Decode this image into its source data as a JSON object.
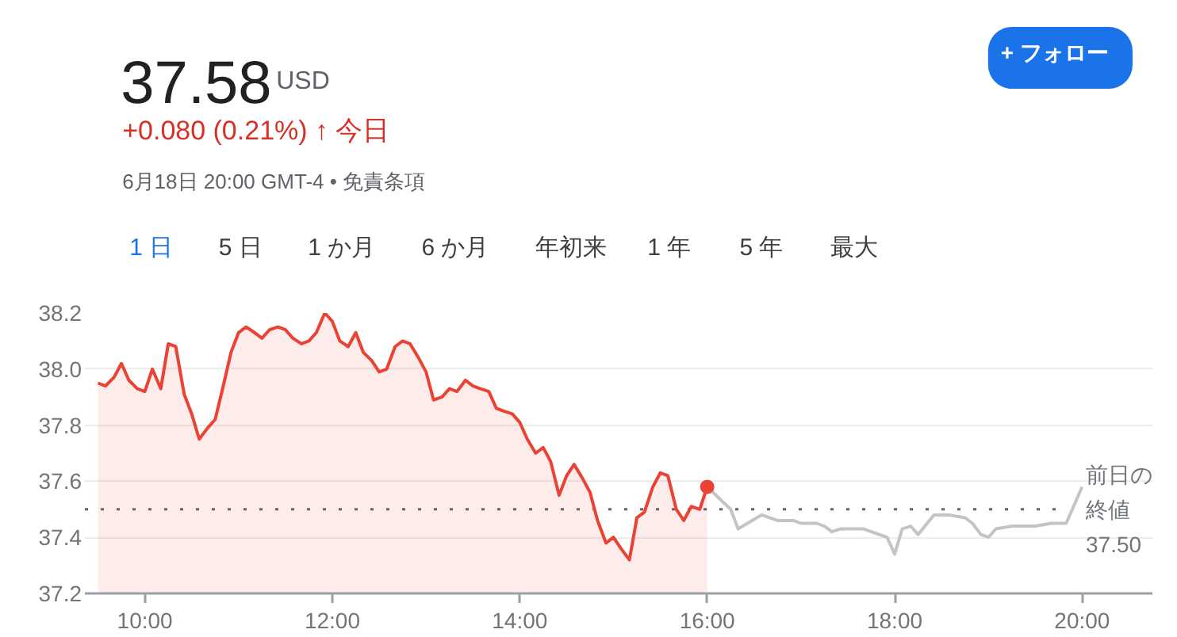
{
  "chart_data": {
    "type": "line",
    "title": "37.58",
    "annotations": [
      "USD",
      "+0.080 (0.21%) ↑ 今日",
      "6月18日 20:00 GMT-4 • 免責条項",
      "+ フォロー",
      "1 日",
      "5 日",
      "1 か月",
      "6 か月",
      "年初来",
      "1 年",
      "5 年",
      "最大"
    ],
    "xlim": [
      9.36,
      20.75
    ],
    "xticks": [
      {
        "value": 10,
        "label": "10:00"
      },
      {
        "value": 12,
        "label": "12:00"
      },
      {
        "value": 14,
        "label": "14:00"
      },
      {
        "value": 16,
        "label": "16:00"
      },
      {
        "value": 18,
        "label": "18:00"
      },
      {
        "value": 20,
        "label": "20:00"
      }
    ],
    "ylim": [
      37.2,
      38.2
    ],
    "yticks": [
      37.2,
      37.4,
      37.6,
      37.8,
      {
        "value": 38,
        "label": "38.0"
      },
      38.2
    ],
    "grid": "y",
    "ref_lines": [
      {
        "axis": "y",
        "value": 37.5,
        "label": "前日の終値 37.50",
        "color": "#5f6368",
        "line_style": "dotted"
      }
    ],
    "series": [
      {
        "type": "area",
        "color": "#ea4335",
        "x": [
          9.5,
          9.58,
          9.67,
          9.75,
          9.83,
          9.92,
          10.0,
          10.08,
          10.17,
          10.25,
          10.33,
          10.42,
          10.5,
          10.58,
          10.67,
          10.75,
          10.83,
          10.92,
          11.0,
          11.08,
          11.17,
          11.25,
          11.33,
          11.42,
          11.5,
          11.58,
          11.67,
          11.75,
          11.83,
          11.92,
          12.0,
          12.08,
          12.17,
          12.25,
          12.33,
          12.42,
          12.5,
          12.58,
          12.67,
          12.75,
          12.83,
          12.92,
          13.0,
          13.08,
          13.17,
          13.25,
          13.33,
          13.42,
          13.5,
          13.58,
          13.67,
          13.75,
          13.83,
          13.92,
          14.0,
          14.08,
          14.17,
          14.25,
          14.33,
          14.42,
          14.5,
          14.58,
          14.67,
          14.75,
          14.83,
          14.92,
          15.0,
          15.08,
          15.17,
          15.25,
          15.33,
          15.42,
          15.5,
          15.58,
          15.67,
          15.75,
          15.83,
          15.92,
          16.0
        ],
        "values": [
          37.95,
          37.94,
          37.97,
          38.02,
          37.96,
          37.93,
          37.92,
          38.0,
          37.93,
          38.09,
          38.08,
          37.91,
          37.84,
          37.75,
          37.79,
          37.82,
          37.93,
          38.06,
          38.13,
          38.15,
          38.13,
          38.11,
          38.14,
          38.15,
          38.14,
          38.11,
          38.09,
          38.1,
          38.13,
          38.2,
          38.17,
          38.1,
          38.08,
          38.13,
          38.06,
          38.03,
          37.99,
          38.0,
          38.08,
          38.1,
          38.09,
          38.04,
          37.99,
          37.89,
          37.9,
          37.93,
          37.92,
          37.96,
          37.94,
          37.93,
          37.92,
          37.86,
          37.85,
          37.84,
          37.81,
          37.75,
          37.7,
          37.72,
          37.67,
          37.55,
          37.62,
          37.66,
          37.61,
          37.56,
          37.46,
          37.38,
          37.4,
          37.36,
          37.32,
          37.47,
          37.49,
          37.58,
          37.63,
          37.62,
          37.5,
          37.46,
          37.51,
          37.5,
          37.58
        ]
      },
      {
        "color": "#c4c4c4",
        "x": [
          16.0,
          16.25,
          16.33,
          16.58,
          16.75,
          16.92,
          17.0,
          17.17,
          17.25,
          17.33,
          17.42,
          17.67,
          17.75,
          17.92,
          18.0,
          18.08,
          18.17,
          18.25,
          18.42,
          18.58,
          18.75,
          18.83,
          18.92,
          19.0,
          19.08,
          19.25,
          19.5,
          19.67,
          19.83,
          20.0
        ],
        "values": [
          37.58,
          37.5,
          37.43,
          37.48,
          37.46,
          37.46,
          37.45,
          37.45,
          37.44,
          37.42,
          37.43,
          37.43,
          37.42,
          37.4,
          37.34,
          37.43,
          37.44,
          37.41,
          37.48,
          37.48,
          37.47,
          37.45,
          37.41,
          37.4,
          37.43,
          37.44,
          37.44,
          37.45,
          37.45,
          37.58
        ]
      },
      {
        "type": "scatter",
        "color": "#ea4335",
        "marker": "circle",
        "x": [
          16.0
        ],
        "values": [
          37.58
        ]
      }
    ]
  }
}
